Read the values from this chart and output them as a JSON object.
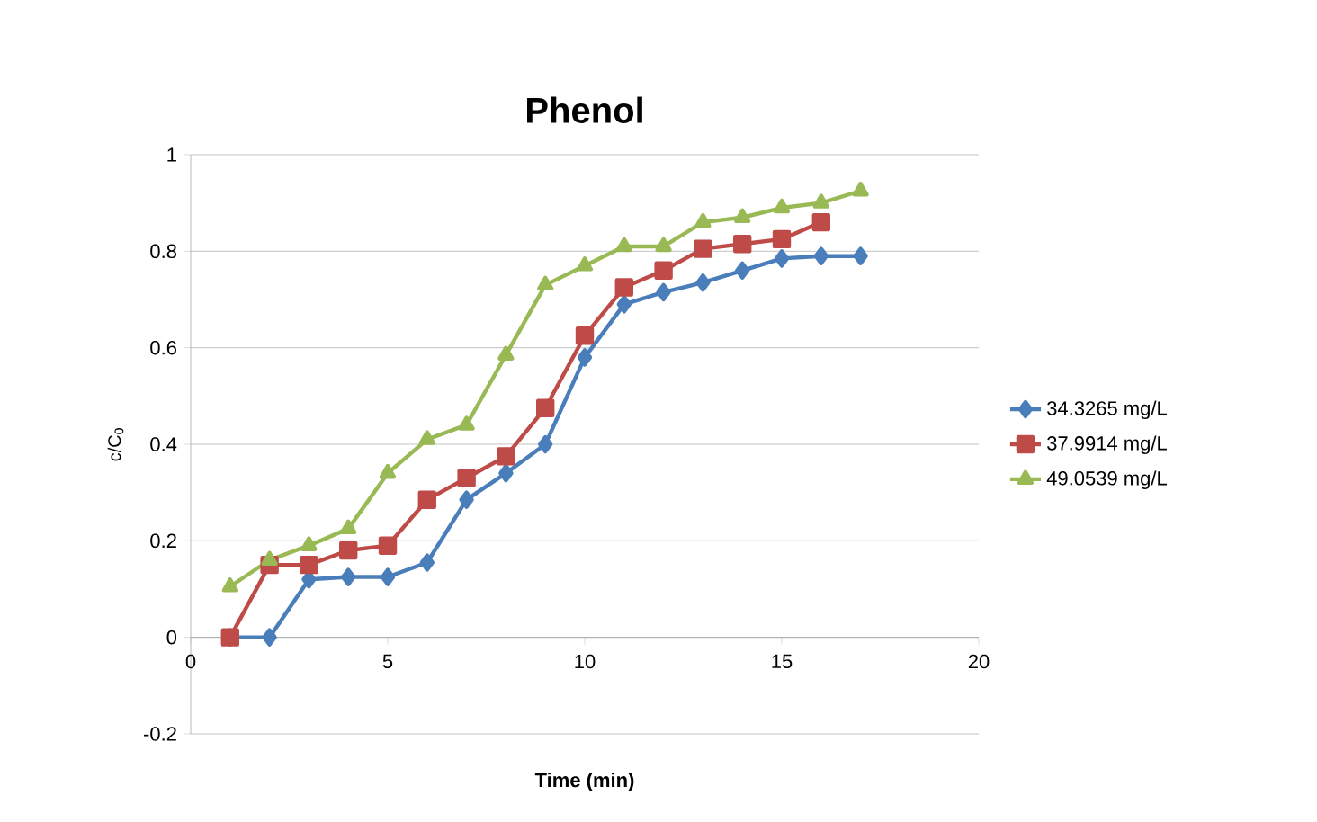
{
  "chart_data": {
    "type": "line",
    "title": "Phenol",
    "xlabel": "Time (min)",
    "ylabel": "c/C$_{0}$",
    "xlim": [
      0,
      20
    ],
    "xticks": [
      0,
      5,
      10,
      15,
      20
    ],
    "ylim": [
      -0.2,
      1
    ],
    "yticks": [
      -0.2,
      0,
      0.2,
      0.4,
      0.6,
      0.8,
      1
    ],
    "grid": "y",
    "legend": "right",
    "series": [
      {
        "name": "34.3265 mg/L",
        "color": "#4a7ebb",
        "marker": "diamond",
        "x": [
          1,
          2,
          3,
          4,
          5,
          6,
          7,
          8,
          9,
          10,
          11,
          12,
          13,
          14,
          15,
          16,
          17
        ],
        "values": [
          0,
          0,
          0.12,
          0.125,
          0.125,
          0.155,
          0.285,
          0.34,
          0.4,
          0.58,
          0.69,
          0.715,
          0.735,
          0.76,
          0.785,
          0.79,
          0.79
        ]
      },
      {
        "name": "37.9914 mg/L",
        "color": "#be4b48",
        "marker": "square",
        "x": [
          1,
          2,
          3,
          4,
          5,
          6,
          7,
          8,
          9,
          10,
          11,
          12,
          13,
          14,
          15,
          16
        ],
        "values": [
          0,
          0.15,
          0.15,
          0.18,
          0.19,
          0.285,
          0.33,
          0.375,
          0.475,
          0.625,
          0.725,
          0.76,
          0.805,
          0.815,
          0.825,
          0.86
        ]
      },
      {
        "name": "49.0539 mg/L",
        "color": "#98b954",
        "marker": "triangle",
        "x": [
          1,
          2,
          3,
          4,
          5,
          6,
          7,
          8,
          9,
          10,
          11,
          12,
          13,
          14,
          15,
          16,
          17
        ],
        "values": [
          0.105,
          0.16,
          0.19,
          0.225,
          0.34,
          0.41,
          0.44,
          0.585,
          0.73,
          0.77,
          0.81,
          0.81,
          0.86,
          0.87,
          0.89,
          0.9,
          0.925
        ]
      }
    ]
  }
}
